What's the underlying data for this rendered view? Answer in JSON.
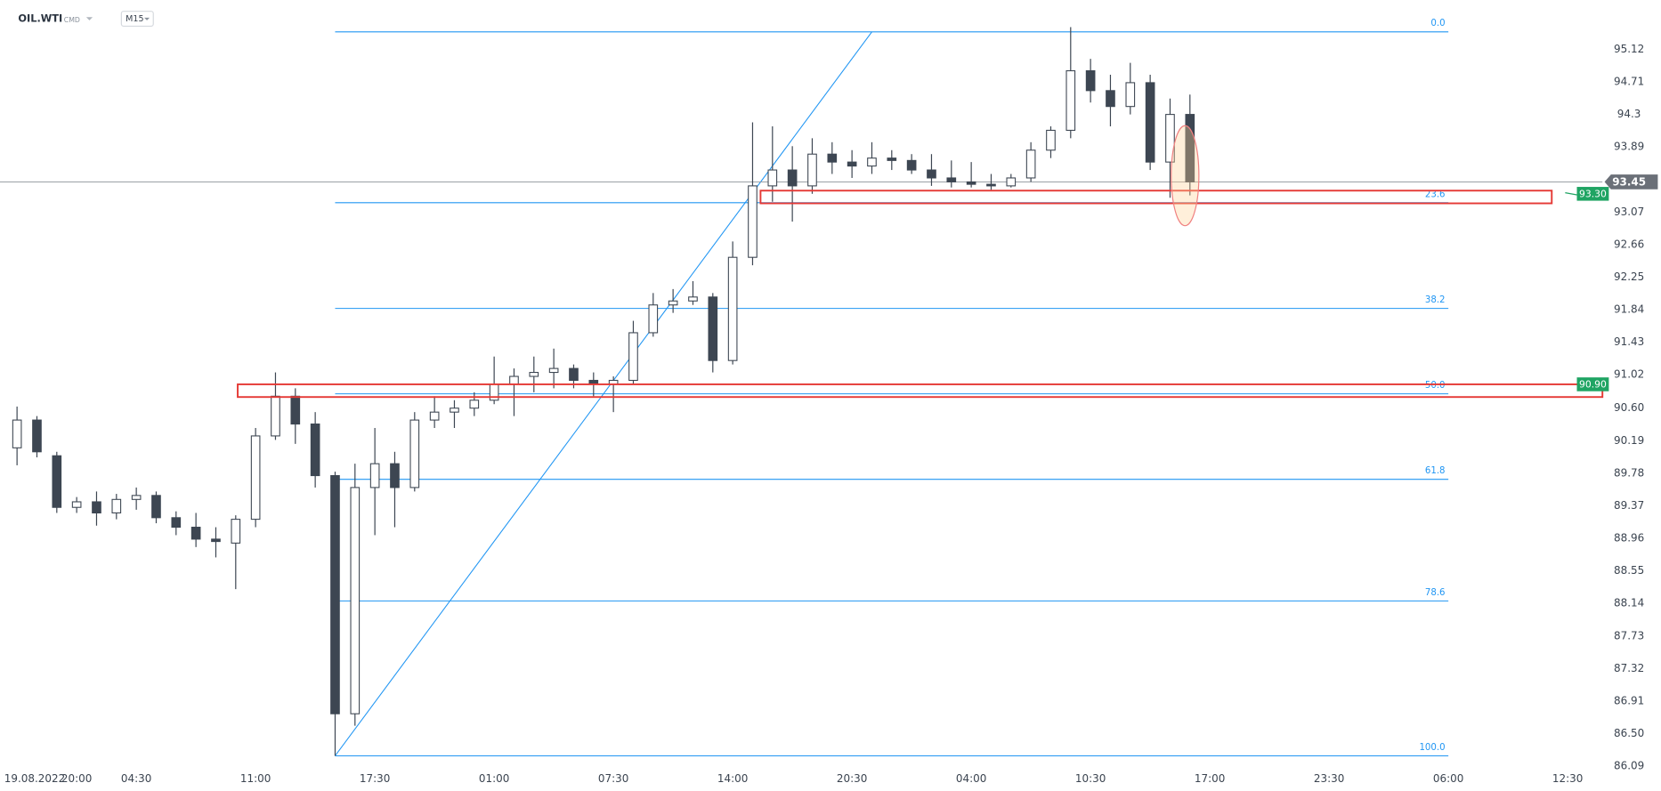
{
  "chart_data": {
    "type": "candlestick",
    "symbol": "OIL.WTI",
    "market": "CMD",
    "interval": "M15",
    "categories": [
      "19.08.2022",
      null,
      null,
      "20:00",
      null,
      null,
      "04:30",
      null,
      null,
      null,
      null,
      null,
      "11:00",
      null,
      null,
      null,
      null,
      null,
      "17:30",
      null,
      null,
      null,
      null,
      null,
      "01:00",
      null,
      null,
      null,
      null,
      null,
      "07:30",
      null,
      null,
      null,
      null,
      null,
      "14:00",
      null,
      null,
      null,
      null,
      null,
      "20:30",
      null,
      null,
      null,
      null,
      null,
      "04:00",
      null,
      null,
      null,
      null,
      null,
      "10:30",
      null,
      null,
      null,
      null,
      null,
      "17:00",
      null,
      null,
      null,
      null,
      null,
      "23:30",
      null,
      null,
      null,
      null,
      null,
      "06:00",
      null,
      null,
      null,
      null,
      null,
      "12:30",
      null
    ],
    "open": [
      90.1,
      90.45,
      90.0,
      89.35,
      89.42,
      89.28,
      89.45,
      89.5,
      89.22,
      89.1,
      88.95,
      88.9,
      89.2,
      90.25,
      90.75,
      90.4,
      89.75,
      86.75,
      89.6,
      89.9,
      89.6,
      90.45,
      90.55,
      90.6,
      90.7,
      90.9,
      91.0,
      91.05,
      91.1,
      90.95,
      90.9,
      90.95,
      91.55,
      91.9,
      91.95,
      92.0,
      91.2,
      92.5,
      93.4,
      93.6,
      93.4,
      93.8,
      93.7,
      93.65,
      93.75,
      93.72,
      93.6,
      93.5,
      93.45,
      93.42,
      93.4,
      93.5,
      93.85,
      94.1,
      94.85,
      94.6,
      94.4,
      94.7,
      93.7,
      94.3,
      null,
      null,
      null,
      null,
      null,
      null,
      null,
      null,
      null,
      null,
      null,
      null,
      null,
      null,
      null,
      null,
      null,
      null,
      null,
      null
    ],
    "high": [
      90.62,
      90.5,
      90.05,
      89.48,
      89.55,
      89.52,
      89.6,
      89.55,
      89.3,
      89.28,
      89.1,
      89.25,
      90.35,
      91.05,
      90.85,
      90.55,
      89.8,
      89.9,
      90.35,
      90.05,
      90.55,
      90.75,
      90.7,
      90.8,
      91.25,
      91.1,
      91.25,
      91.35,
      91.15,
      91.05,
      91.0,
      91.7,
      92.05,
      92.1,
      92.2,
      92.05,
      92.7,
      94.2,
      94.15,
      93.9,
      94.0,
      93.95,
      93.85,
      93.95,
      93.85,
      93.8,
      93.8,
      93.72,
      93.7,
      93.55,
      93.55,
      93.95,
      94.15,
      95.4,
      95.0,
      94.8,
      94.95,
      94.8,
      94.5,
      94.55,
      null,
      null,
      null,
      null,
      null,
      null,
      null,
      null,
      null,
      null,
      null,
      null,
      null,
      null,
      null,
      null,
      null,
      null,
      null,
      null
    ],
    "low": [
      89.88,
      89.98,
      89.28,
      89.28,
      89.12,
      89.2,
      89.32,
      89.15,
      89.0,
      88.85,
      88.72,
      88.32,
      89.1,
      90.2,
      90.15,
      89.6,
      86.22,
      86.6,
      89.0,
      89.1,
      89.55,
      90.35,
      90.35,
      90.5,
      90.65,
      90.5,
      90.8,
      90.85,
      90.85,
      90.75,
      90.55,
      90.9,
      91.5,
      91.8,
      91.9,
      91.05,
      91.15,
      92.4,
      93.2,
      92.95,
      93.3,
      93.55,
      93.5,
      93.55,
      93.6,
      93.55,
      93.4,
      93.38,
      93.38,
      93.35,
      93.38,
      93.45,
      93.75,
      94.0,
      94.45,
      94.15,
      94.3,
      93.6,
      93.25,
      93.28,
      null,
      null,
      null,
      null,
      null,
      null,
      null,
      null,
      null,
      null,
      null,
      null,
      null,
      null,
      null,
      null,
      null,
      null,
      null,
      null
    ],
    "close": [
      90.45,
      90.05,
      89.35,
      89.42,
      89.28,
      89.45,
      89.5,
      89.22,
      89.1,
      88.95,
      88.92,
      89.2,
      90.25,
      90.75,
      90.4,
      89.75,
      86.75,
      89.6,
      89.9,
      89.6,
      90.45,
      90.55,
      90.6,
      90.7,
      90.9,
      91.0,
      91.05,
      91.1,
      90.95,
      90.9,
      90.95,
      91.55,
      91.9,
      91.95,
      92.0,
      91.2,
      92.5,
      93.4,
      93.6,
      93.4,
      93.8,
      93.7,
      93.65,
      93.75,
      93.72,
      93.6,
      93.5,
      93.45,
      93.42,
      93.4,
      93.5,
      93.85,
      94.1,
      94.85,
      94.6,
      94.4,
      94.7,
      93.7,
      94.3,
      93.45,
      null,
      null,
      null,
      null,
      null,
      null,
      null,
      null,
      null,
      null,
      null,
      null,
      null,
      null,
      null,
      null,
      null,
      null,
      null,
      null
    ],
    "up_color": "#ffffff",
    "down_color": "#3d4652",
    "ylim": [
      86.06,
      95.74
    ],
    "yticks": [
      95.12,
      94.71,
      94.3,
      93.89,
      93.07,
      92.66,
      92.25,
      91.84,
      91.43,
      91.02,
      {
        "value": 90.6,
        "label": "90.60"
      },
      90.19,
      89.78,
      89.37,
      88.96,
      88.55,
      88.14,
      87.73,
      87.32,
      86.91,
      {
        "value": 86.5,
        "label": "86.50"
      },
      86.09
    ],
    "current_price": 93.45,
    "fibonacci": {
      "color": "#2196f3",
      "levels": [
        {
          "value": 0,
          "label": "0.0"
        },
        23.6,
        38.2,
        {
          "value": 50,
          "label": "50.0"
        },
        61.8,
        78.6,
        {
          "value": 100,
          "label": "100.0"
        }
      ],
      "anchors": [
        {
          "index": 16,
          "price": 86.22
        },
        {
          "index": 43,
          "price": 95.34
        }
      ],
      "extend_to_index": 72
    },
    "zones": [
      {
        "price_range": [
          93.18,
          93.34
        ],
        "start_index": 37.4,
        "end_index": 77.2,
        "label": {
          "value": 93.3,
          "label": "93.30"
        }
      },
      {
        "price_range": [
          90.74,
          90.9
        ],
        "start_index": 11.1,
        "label": {
          "value": 90.9,
          "label": "90.90"
        }
      }
    ],
    "zone_color": "#e53935",
    "label_color": "#1fa463"
  }
}
